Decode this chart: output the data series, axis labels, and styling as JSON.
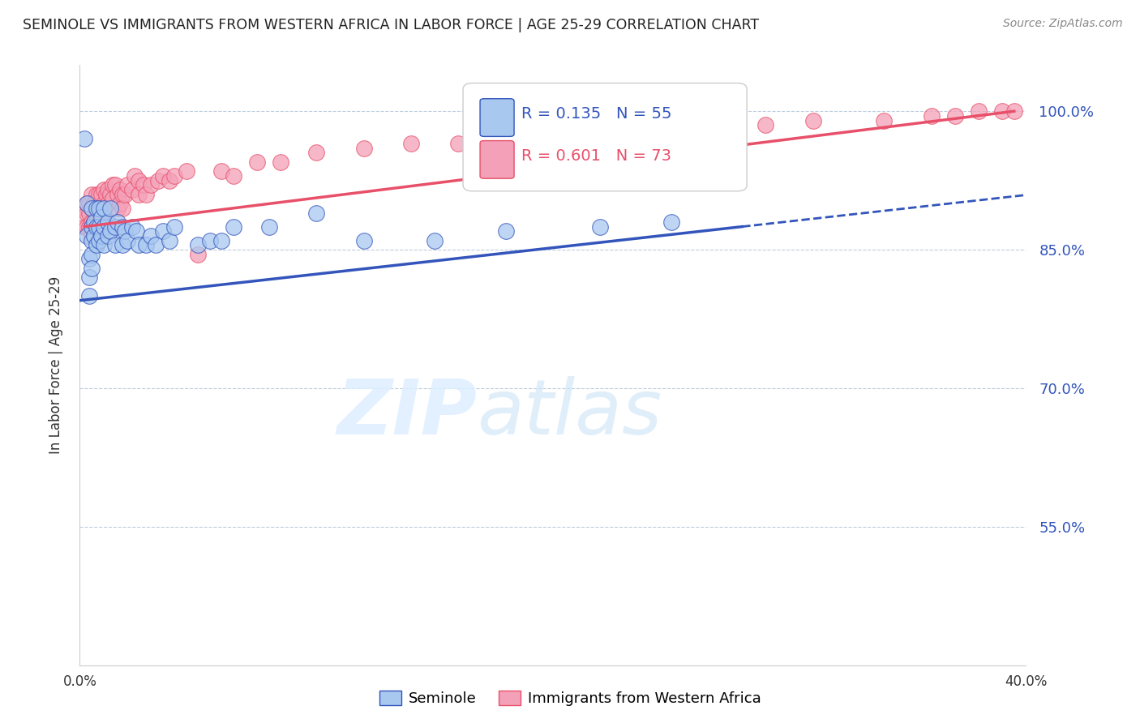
{
  "title": "SEMINOLE VS IMMIGRANTS FROM WESTERN AFRICA IN LABOR FORCE | AGE 25-29 CORRELATION CHART",
  "source": "Source: ZipAtlas.com",
  "ylabel": "In Labor Force | Age 25-29",
  "xlim": [
    0.0,
    0.4
  ],
  "ylim": [
    0.4,
    1.05
  ],
  "yticks": [
    0.55,
    0.7,
    0.85,
    1.0
  ],
  "ytick_labels": [
    "55.0%",
    "70.0%",
    "85.0%",
    "100.0%"
  ],
  "xticks": [
    0.0,
    0.05,
    0.1,
    0.15,
    0.2,
    0.25,
    0.3,
    0.35,
    0.4
  ],
  "xtick_labels": [
    "0.0%",
    "",
    "",
    "",
    "",
    "",
    "",
    "",
    "40.0%"
  ],
  "blue_R": 0.135,
  "blue_N": 55,
  "pink_R": 0.601,
  "pink_N": 73,
  "blue_color": "#A8C8F0",
  "pink_color": "#F4A0B8",
  "blue_line_color": "#3355BB",
  "pink_line_color": "#E8506A",
  "watermark_zip": "ZIP",
  "watermark_atlas": "atlas",
  "legend_label_blue": "Seminole",
  "legend_label_pink": "Immigrants from Western Africa",
  "blue_scatter_x": [
    0.002,
    0.003,
    0.003,
    0.004,
    0.004,
    0.004,
    0.005,
    0.005,
    0.005,
    0.005,
    0.005,
    0.006,
    0.006,
    0.007,
    0.007,
    0.007,
    0.008,
    0.008,
    0.008,
    0.009,
    0.009,
    0.01,
    0.01,
    0.01,
    0.012,
    0.012,
    0.013,
    0.013,
    0.015,
    0.015,
    0.016,
    0.018,
    0.018,
    0.019,
    0.02,
    0.022,
    0.024,
    0.025,
    0.028,
    0.03,
    0.032,
    0.035,
    0.038,
    0.04,
    0.05,
    0.055,
    0.06,
    0.065,
    0.08,
    0.1,
    0.12,
    0.15,
    0.18,
    0.22,
    0.25
  ],
  "blue_scatter_y": [
    0.97,
    0.9,
    0.865,
    0.84,
    0.82,
    0.8,
    0.895,
    0.875,
    0.86,
    0.845,
    0.83,
    0.88,
    0.865,
    0.895,
    0.875,
    0.855,
    0.895,
    0.875,
    0.86,
    0.885,
    0.865,
    0.895,
    0.875,
    0.855,
    0.88,
    0.865,
    0.895,
    0.87,
    0.875,
    0.855,
    0.88,
    0.875,
    0.855,
    0.87,
    0.86,
    0.875,
    0.87,
    0.855,
    0.855,
    0.865,
    0.855,
    0.87,
    0.86,
    0.875,
    0.855,
    0.86,
    0.86,
    0.875,
    0.875,
    0.89,
    0.86,
    0.86,
    0.87,
    0.875,
    0.88
  ],
  "pink_scatter_x": [
    0.002,
    0.002,
    0.003,
    0.003,
    0.003,
    0.004,
    0.004,
    0.004,
    0.005,
    0.005,
    0.005,
    0.005,
    0.006,
    0.006,
    0.007,
    0.007,
    0.007,
    0.008,
    0.008,
    0.009,
    0.009,
    0.009,
    0.01,
    0.01,
    0.01,
    0.011,
    0.012,
    0.012,
    0.013,
    0.014,
    0.014,
    0.015,
    0.016,
    0.016,
    0.017,
    0.017,
    0.018,
    0.018,
    0.019,
    0.02,
    0.022,
    0.023,
    0.025,
    0.025,
    0.027,
    0.028,
    0.03,
    0.033,
    0.035,
    0.038,
    0.04,
    0.045,
    0.05,
    0.06,
    0.065,
    0.075,
    0.085,
    0.1,
    0.12,
    0.14,
    0.16,
    0.18,
    0.2,
    0.23,
    0.26,
    0.29,
    0.31,
    0.34,
    0.36,
    0.37,
    0.38,
    0.39,
    0.395
  ],
  "pink_scatter_y": [
    0.895,
    0.875,
    0.9,
    0.89,
    0.875,
    0.9,
    0.89,
    0.875,
    0.91,
    0.895,
    0.88,
    0.865,
    0.9,
    0.88,
    0.91,
    0.895,
    0.88,
    0.91,
    0.895,
    0.91,
    0.895,
    0.88,
    0.915,
    0.9,
    0.885,
    0.91,
    0.915,
    0.9,
    0.91,
    0.92,
    0.905,
    0.92,
    0.91,
    0.895,
    0.915,
    0.9,
    0.91,
    0.895,
    0.91,
    0.92,
    0.915,
    0.93,
    0.925,
    0.91,
    0.92,
    0.91,
    0.92,
    0.925,
    0.93,
    0.925,
    0.93,
    0.935,
    0.845,
    0.935,
    0.93,
    0.945,
    0.945,
    0.955,
    0.96,
    0.965,
    0.965,
    0.975,
    0.975,
    0.98,
    0.985,
    0.985,
    0.99,
    0.99,
    0.995,
    0.995,
    1.0,
    1.0,
    1.0
  ]
}
